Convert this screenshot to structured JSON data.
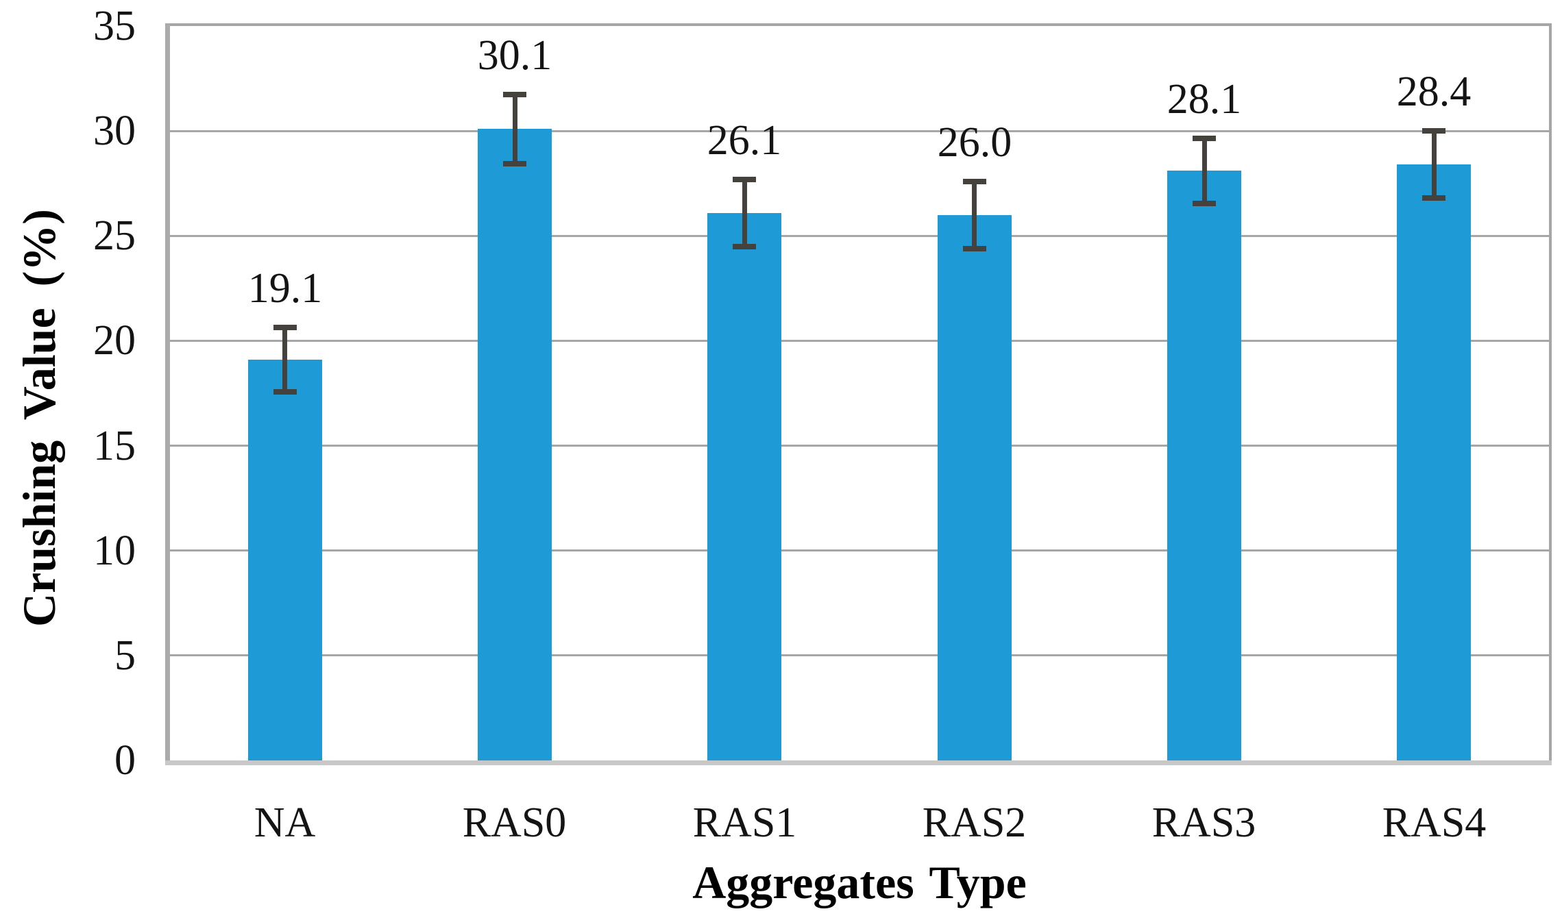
{
  "chart_data": {
    "type": "bar",
    "title": "",
    "xlabel": "Aggregates Type",
    "ylabel": "Crushing Value (%)",
    "categories": [
      "NA",
      "RAS0",
      "RAS1",
      "RAS2",
      "RAS3",
      "RAS4"
    ],
    "values": [
      19.1,
      30.1,
      26.1,
      26.0,
      28.1,
      28.4
    ],
    "value_labels": [
      "19.1",
      "30.1",
      "26.1",
      "26.0",
      "28.1",
      "28.4"
    ],
    "error_bars": [
      1.55,
      1.65,
      1.6,
      1.6,
      1.55,
      1.6
    ],
    "ylim": [
      0,
      35
    ],
    "ytick_step": 5,
    "ytick_labels": [
      "0",
      "5",
      "10",
      "15",
      "20",
      "25",
      "30",
      "35"
    ],
    "grid": true,
    "legend": "none",
    "colors": {
      "bar": "#1e9ad6",
      "grid": "#a6a6a6",
      "frame": "#a6a6a6",
      "axis_left": "#ababab",
      "axis_bottom": "#c8c8c8",
      "error_bar": "#45413c",
      "text": "#141414",
      "background": "#ffffff"
    }
  }
}
